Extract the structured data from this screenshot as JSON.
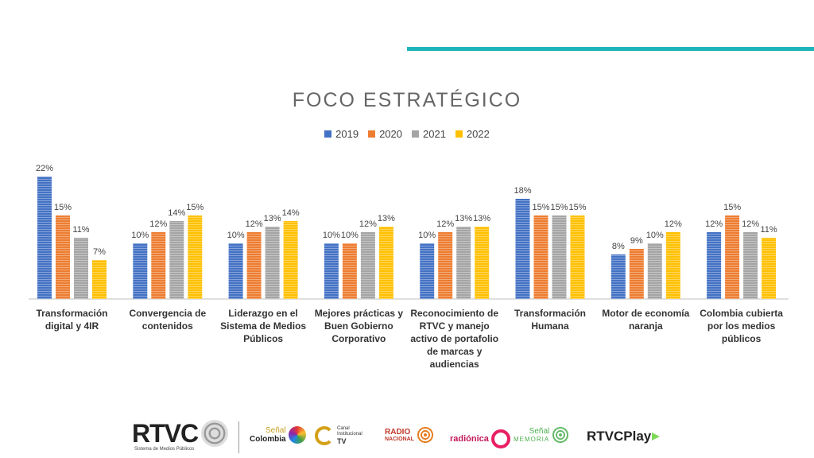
{
  "colors": {
    "accent": "#1fb5b8",
    "series": [
      "#4472c4",
      "#ed7d31",
      "#a5a5a5",
      "#ffc000"
    ]
  },
  "chart_data": {
    "type": "bar",
    "title": "FOCO ESTRATÉGICO",
    "legend_position": "top-center",
    "grid": false,
    "ylim": [
      0,
      23
    ],
    "categories": [
      "Transformación digital y 4IR",
      "Convergencia de contenidos",
      "Liderazgo en el Sistema de Medios Públicos",
      "Mejores prácticas y Buen Gobierno Corporativo",
      "Reconocimiento de RTVC y manejo activo de portafolio de marcas y audiencias",
      "Transformación Humana",
      "Motor de economía naranja",
      "Colombia cubierta por los medios públicos"
    ],
    "series": [
      {
        "name": "2019",
        "values": [
          22,
          10,
          10,
          10,
          10,
          18,
          8,
          12
        ]
      },
      {
        "name": "2020",
        "values": [
          15,
          12,
          12,
          10,
          12,
          15,
          9,
          15
        ]
      },
      {
        "name": "2021",
        "values": [
          11,
          14,
          13,
          12,
          13,
          15,
          10,
          12
        ]
      },
      {
        "name": "2022",
        "values": [
          7,
          15,
          14,
          13,
          13,
          15,
          12,
          11
        ]
      }
    ],
    "value_suffix": "%"
  },
  "footer": {
    "rtvc_logo": "RTVC",
    "rtvc_sub": "Sistema de Medios Públicos",
    "senal_colombia_top": "Señal",
    "senal_colombia_bottom": "Colombia",
    "canal_institucional": "Canal Institucional",
    "canal_tv": "TV",
    "radio_nacional_top": "RADIO",
    "radio_nacional_bottom": "NACIONAL",
    "radionica": "radiónica",
    "senal_memoria_top": "Señal",
    "senal_memoria_bottom": "MEMORIA",
    "rtvcplay": "RTVCPlay"
  }
}
